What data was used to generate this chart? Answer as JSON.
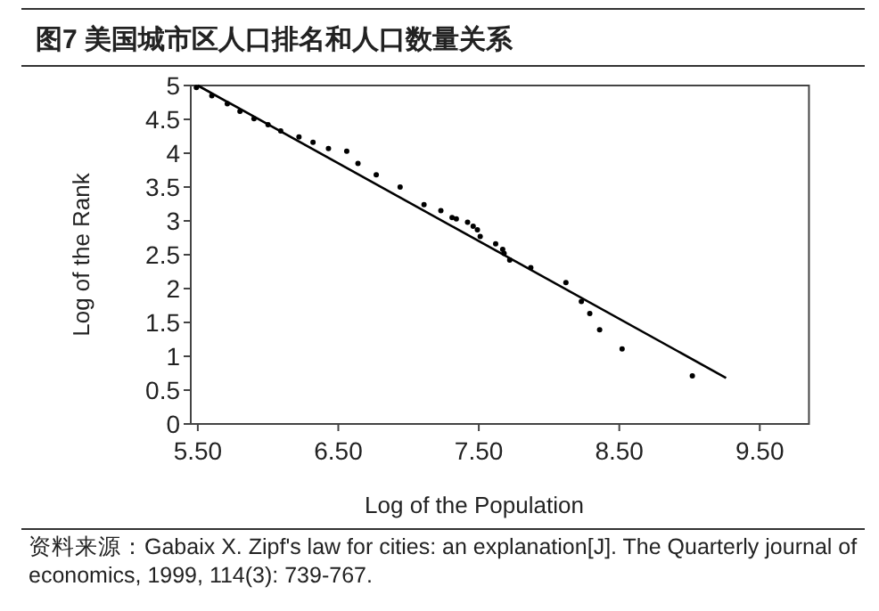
{
  "chart_data": {
    "type": "scatter",
    "title": "图7  美国城市区人口排名和人口数量关系",
    "xlabel": "Log of the Population",
    "ylabel": "Log of the Rank",
    "annotations": [
      "资料来源：Gabaix X. Zipf's law for cities: an explanation[J]. The Quarterly journal of economics, 1999, 114(3): 739-767."
    ],
    "xlim": [
      5.45,
      9.85
    ],
    "ylim": [
      0,
      5
    ],
    "xticks": [
      {
        "value": 5.5,
        "label": "5.50"
      },
      {
        "value": 6.5,
        "label": "6.50"
      },
      {
        "value": 7.5,
        "label": "7.50"
      },
      {
        "value": 8.5,
        "label": "8.50"
      },
      {
        "value": 9.5,
        "label": "9.50"
      }
    ],
    "yticks": [
      0,
      0.5,
      1,
      1.5,
      2,
      2.5,
      3,
      3.5,
      4,
      4.5,
      5
    ],
    "grid": false,
    "series": [
      {
        "color": "#000000",
        "marker": "circle",
        "x": [
          5.49,
          5.6,
          5.71,
          5.8,
          5.9,
          6.0,
          6.09,
          6.22,
          6.32,
          6.43,
          6.56,
          6.64,
          6.77,
          6.94,
          7.11,
          7.23,
          7.31,
          7.34,
          7.42,
          7.46,
          7.49,
          7.51,
          7.62,
          7.67,
          7.68,
          7.72,
          7.87,
          8.12,
          8.23,
          8.29,
          8.36,
          8.52,
          9.02
        ],
        "values": [
          4.97,
          4.85,
          4.73,
          4.62,
          4.51,
          4.42,
          4.33,
          4.24,
          4.16,
          4.07,
          4.03,
          3.85,
          3.68,
          3.5,
          3.24,
          3.15,
          3.05,
          3.03,
          2.98,
          2.92,
          2.87,
          2.77,
          2.66,
          2.58,
          2.52,
          2.42,
          2.31,
          2.09,
          1.81,
          1.63,
          1.39,
          1.11,
          0.71
        ]
      },
      {
        "type": "line",
        "color": "#000000",
        "x": [
          5.5,
          9.26
        ],
        "values": [
          5.0,
          0.68
        ]
      }
    ]
  }
}
